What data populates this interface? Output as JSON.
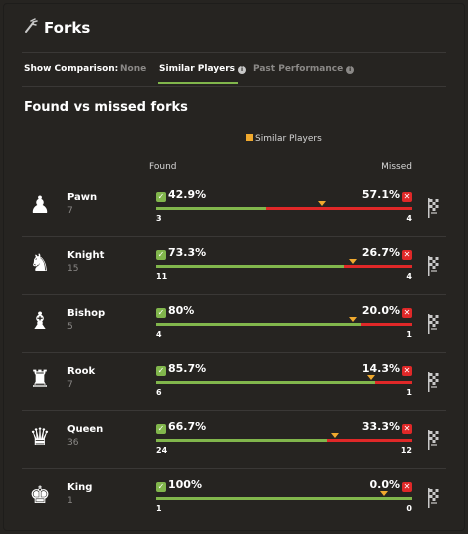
{
  "header": {
    "title": "Forks",
    "icon": "fork-icon"
  },
  "comparison": {
    "label": "Show Comparison:",
    "options": [
      {
        "label": "None"
      },
      {
        "label": "Similar Players",
        "info": "i"
      },
      {
        "label": "Past Performance",
        "info": "i"
      }
    ],
    "active": "Similar Players"
  },
  "section": {
    "title": "Found vs missed forks",
    "legend": "Similar Players",
    "found_header": "Found",
    "missed_header": "Missed"
  },
  "colors": {
    "found": "#81b64c",
    "missed": "#e02828",
    "marker": "#f0a92e"
  },
  "rows": [
    {
      "piece": "Pawn",
      "icon": "♟",
      "count": "7",
      "found_pct": "42.9%",
      "missed_pct": "57.1%",
      "found_n": "3",
      "missed_n": "4",
      "found_frac": 0.429,
      "marker_frac": 0.65
    },
    {
      "piece": "Knight",
      "icon": "♞",
      "count": "15",
      "found_pct": "73.3%",
      "missed_pct": "26.7%",
      "found_n": "11",
      "missed_n": "4",
      "found_frac": 0.733,
      "marker_frac": 0.77
    },
    {
      "piece": "Bishop",
      "icon": "♝",
      "count": "5",
      "found_pct": "80%",
      "missed_pct": "20.0%",
      "found_n": "4",
      "missed_n": "1",
      "found_frac": 0.8,
      "marker_frac": 0.77
    },
    {
      "piece": "Rook",
      "icon": "♜",
      "count": "7",
      "found_pct": "85.7%",
      "missed_pct": "14.3%",
      "found_n": "6",
      "missed_n": "1",
      "found_frac": 0.857,
      "marker_frac": 0.84
    },
    {
      "piece": "Queen",
      "icon": "♛",
      "count": "36",
      "found_pct": "66.7%",
      "missed_pct": "33.3%",
      "found_n": "24",
      "missed_n": "12",
      "found_frac": 0.667,
      "marker_frac": 0.7
    },
    {
      "piece": "King",
      "icon": "♚",
      "count": "1",
      "found_pct": "100%",
      "missed_pct": "0.0%",
      "found_n": "1",
      "missed_n": "0",
      "found_frac": 1.0,
      "marker_frac": 0.89
    }
  ]
}
